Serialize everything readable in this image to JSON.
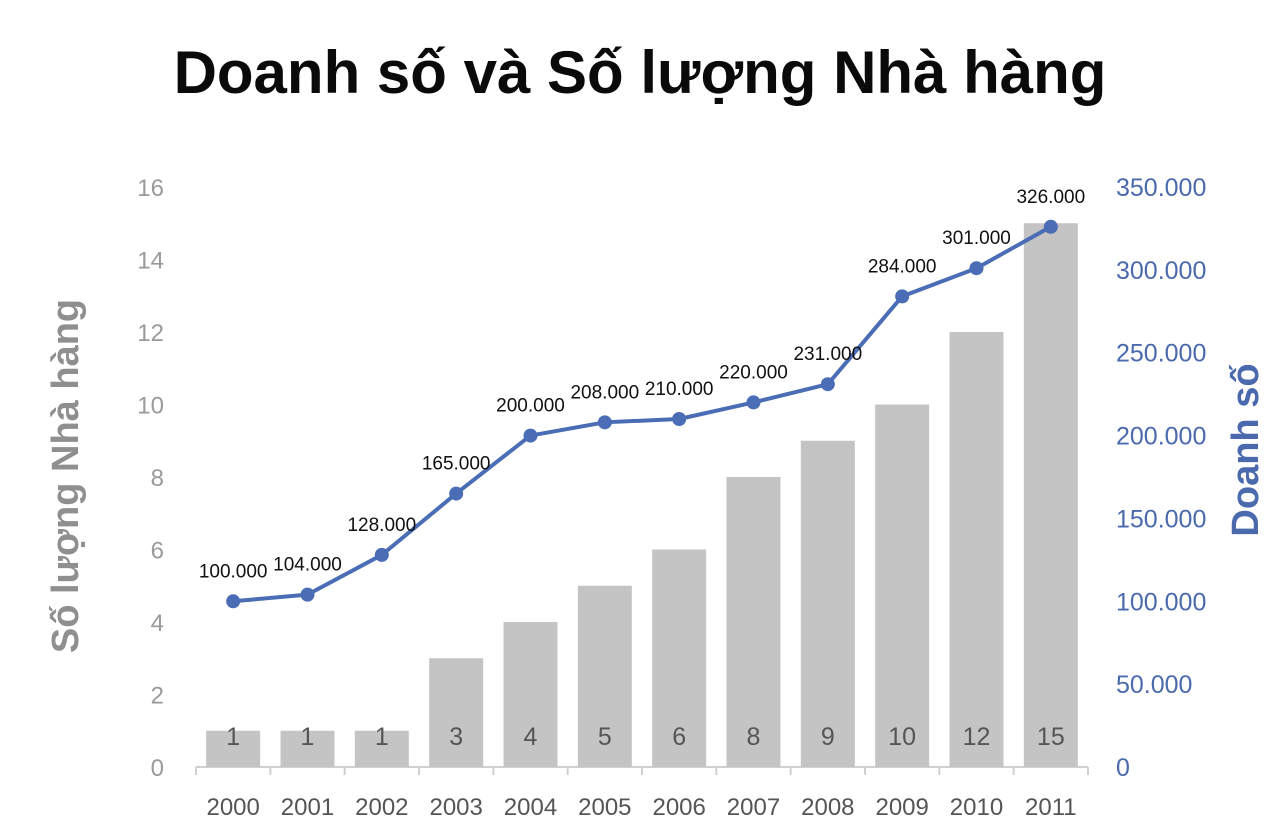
{
  "chart_data": {
    "type": "bar",
    "title": "Doanh số và Số lượng Nhà hàng",
    "categories": [
      "2000",
      "2001",
      "2002",
      "2003",
      "2004",
      "2005",
      "2006",
      "2007",
      "2008",
      "2009",
      "2010",
      "2011"
    ],
    "y_left": {
      "label": "Số lượng Nhà hàng",
      "ylim": [
        0,
        16
      ],
      "ticks": [
        "0",
        "2",
        "4",
        "6",
        "8",
        "10",
        "12",
        "14",
        "16"
      ]
    },
    "y_right": {
      "label": "Doanh số",
      "ylim": [
        0,
        350000
      ],
      "ticks": [
        "0",
        "50.000",
        "100.000",
        "150.000",
        "200.000",
        "250.000",
        "300.000",
        "350.000"
      ]
    },
    "series": [
      {
        "name": "Số lượng Nhà hàng",
        "type": "bar",
        "axis": "left",
        "color": "#c4c4c4",
        "values": [
          1,
          1,
          1,
          3,
          4,
          5,
          6,
          8,
          9,
          10,
          12,
          15
        ],
        "labels": [
          "1",
          "1",
          "1",
          "3",
          "4",
          "5",
          "6",
          "8",
          "9",
          "10",
          "12",
          "15"
        ]
      },
      {
        "name": "Doanh số",
        "type": "line",
        "axis": "right",
        "color": "#4a6db5",
        "values": [
          100000,
          104000,
          128000,
          165000,
          200000,
          208000,
          210000,
          220000,
          231000,
          284000,
          301000,
          326000
        ],
        "labels": [
          "100.000",
          "104.000",
          "128.000",
          "165.000",
          "200.000",
          "208.000",
          "210.000",
          "220.000",
          "231.000",
          "284.000",
          "301.000",
          "326.000"
        ]
      }
    ],
    "grid": false,
    "legend": "none"
  }
}
